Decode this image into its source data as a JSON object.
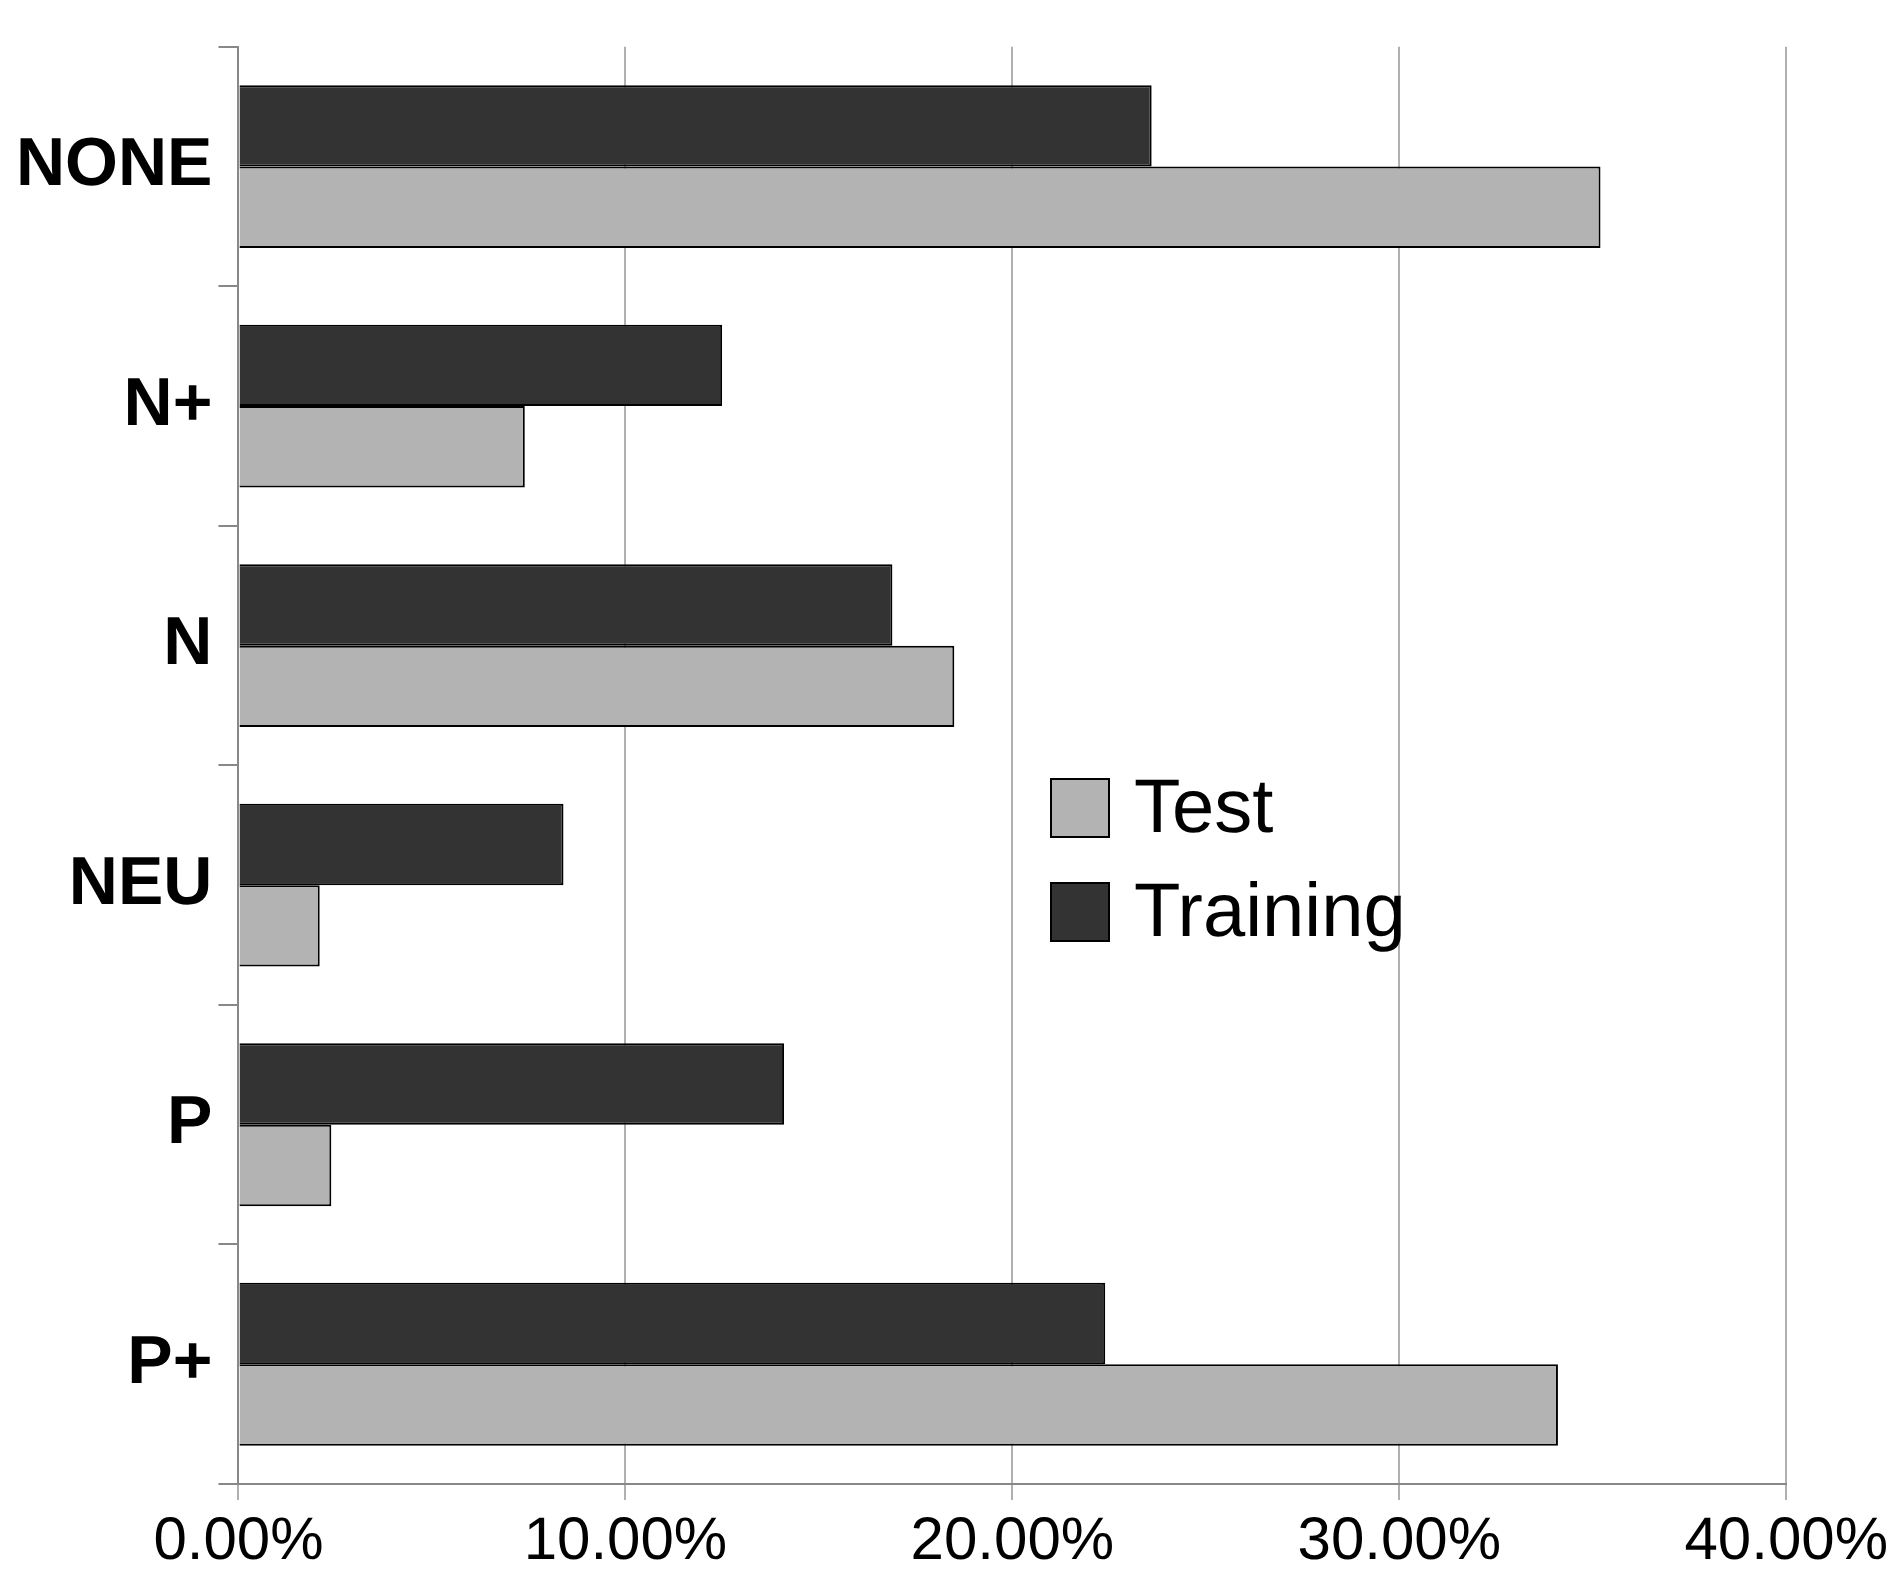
{
  "chart_data": {
    "type": "bar",
    "orientation": "horizontal",
    "categories": [
      "NONE",
      "N+",
      "N",
      "NEU",
      "P",
      "P+"
    ],
    "series": [
      {
        "name": "Training",
        "color": "#333333",
        "values": [
          23.6,
          12.5,
          16.9,
          8.4,
          14.1,
          22.4
        ]
      },
      {
        "name": "Test",
        "color": "#b3b3b3",
        "values": [
          35.2,
          7.4,
          18.5,
          2.1,
          2.4,
          34.1
        ]
      }
    ],
    "xlim": [
      0,
      40
    ],
    "xticks": [
      {
        "value": 0,
        "label": "0.00%"
      },
      {
        "value": 10,
        "label": "10.00%"
      },
      {
        "value": 20,
        "label": "20.00%"
      },
      {
        "value": 30,
        "label": "30.00%"
      },
      {
        "value": 40,
        "label": "40.00%"
      }
    ],
    "grid": "x",
    "legend": "right"
  }
}
